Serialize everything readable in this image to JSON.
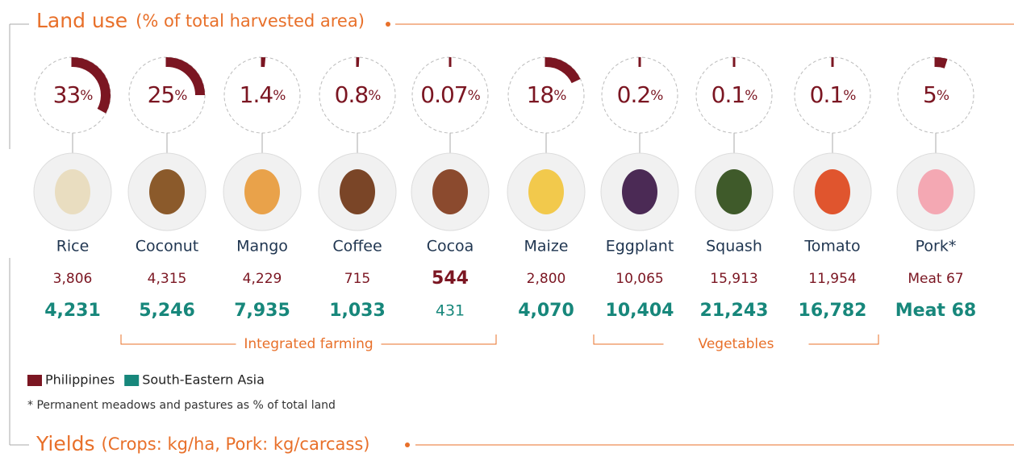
{
  "header": {
    "title": "Land use",
    "subtitle": "(% of total harvested area)"
  },
  "percent_unit": "%",
  "items": [
    {
      "name": "Rice",
      "share": 33,
      "philippines": 3806,
      "philippines_label": "3,806",
      "south_eastern_asia": 4231,
      "south_eastern_asia_label": "4,231"
    },
    {
      "name": "Coconut",
      "share": 25,
      "philippines": 4315,
      "philippines_label": "4,315",
      "south_eastern_asia": 5246,
      "south_eastern_asia_label": "5,246"
    },
    {
      "name": "Mango",
      "share": 1.4,
      "philippines": 4229,
      "philippines_label": "4,229",
      "south_eastern_asia": 7935,
      "south_eastern_asia_label": "7,935"
    },
    {
      "name": "Coffee",
      "share": 0.8,
      "philippines": 715,
      "philippines_label": "715",
      "south_eastern_asia": 1033,
      "south_eastern_asia_label": "1,033"
    },
    {
      "name": "Cocoa",
      "share": 0.07,
      "philippines": 544,
      "philippines_label": "544",
      "south_eastern_asia": 431,
      "south_eastern_asia_label": "431"
    },
    {
      "name": "Maize",
      "share": 18,
      "philippines": 2800,
      "philippines_label": "2,800",
      "south_eastern_asia": 4070,
      "south_eastern_asia_label": "4,070"
    },
    {
      "name": "Eggplant",
      "share": 0.2,
      "philippines": 10065,
      "philippines_label": "10,065",
      "south_eastern_asia": 10404,
      "south_eastern_asia_label": "10,404"
    },
    {
      "name": "Squash",
      "share": 0.1,
      "philippines": 15913,
      "philippines_label": "15,913",
      "south_eastern_asia": 21243,
      "south_eastern_asia_label": "21,243"
    },
    {
      "name": "Tomato",
      "share": 0.1,
      "philippines": 11954,
      "philippines_label": "11,954",
      "south_eastern_asia": 16782,
      "south_eastern_asia_label": "16,782"
    },
    {
      "name": "Pork*",
      "share": 5,
      "philippines": 67,
      "philippines_label": "Meat 67",
      "south_eastern_asia": 68,
      "south_eastern_asia_label": "Meat 68"
    }
  ],
  "groups": [
    {
      "label": "Integrated farming",
      "from": 1,
      "to": 4
    },
    {
      "label": "Vegetables",
      "from": 6,
      "to": 8
    }
  ],
  "legend": [
    {
      "name": "Philippines",
      "color": "#7b1622"
    },
    {
      "name": "South-Eastern Asia",
      "color": "#17877b"
    }
  ],
  "footnote": "* Permanent meadows and pastures as % of total land",
  "yields_header": {
    "title": "Yields",
    "subtitle": "(Crops: kg/ha,  Pork: kg/carcass)"
  }
}
